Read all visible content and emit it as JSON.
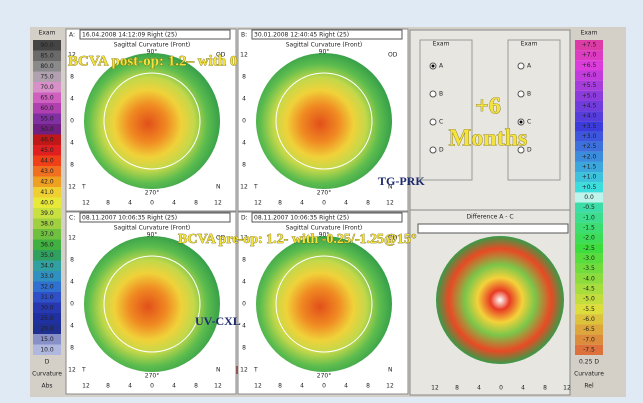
{
  "left_scale": {
    "header": "Exam",
    "labels": [
      "90.0",
      "85.0",
      "80.0",
      "75.0",
      "70.0",
      "65.0",
      "60.0",
      "55.0",
      "50.0",
      "46.0",
      "45.0",
      "44.0",
      "43.0",
      "42.0",
      "41.0",
      "40.0",
      "39.0",
      "38.0",
      "37.0",
      "36.0",
      "35.0",
      "34.0",
      "33.0",
      "32.0",
      "31.0",
      "30.0",
      "25.0",
      "20.0",
      "15.0",
      "10.0"
    ],
    "footer": [
      "D",
      "Curvature",
      "Abs"
    ]
  },
  "right_scale": {
    "header": "Exam",
    "labels": [
      "+7.5",
      "+7.0",
      "+6.5",
      "+6.0",
      "+5.5",
      "+5.0",
      "+4.5",
      "+4.0",
      "+3.5",
      "+3.0",
      "+2.5",
      "+2.0",
      "+1.5",
      "+1.0",
      "+0.5",
      "0.0",
      "-0.5",
      "-1.0",
      "-1.5",
      "-2.0",
      "-2.5",
      "-3.0",
      "-3.5",
      "-4.0",
      "-4.5",
      "-5.0",
      "-5.5",
      "-6.0",
      "-6.5",
      "-7.0",
      "-7.5"
    ],
    "footer": [
      "0.25 D",
      "Curvature",
      "Rel"
    ]
  },
  "panels": [
    {
      "letter": "A:",
      "date": "16.04.2008 14:12:09 Right (25)",
      "map_title": "Sagittal Curvature (Front)"
    },
    {
      "letter": "B:",
      "date": "30.01.2008 12:40:45 Right (25)",
      "map_title": "Sagittal Curvature (Front)"
    },
    {
      "letter": "C:",
      "date": "08.11.2007 10:06:35 Right (25)",
      "map_title": "Sagittal Curvature (Front)"
    },
    {
      "letter": "D:",
      "date": "08.11.2007 10:06:35 Right (25)",
      "map_title": "Sagittal Curvature (Front)"
    }
  ],
  "map_axes": {
    "top": "90°",
    "bottom": "270°",
    "eye": "OD",
    "left": "T",
    "right": "N",
    "ticks": [
      "12",
      "8",
      "4",
      "0",
      "4",
      "8",
      "12"
    ]
  },
  "exam_panel": {
    "columns": [
      {
        "title": "Exam",
        "options": [
          "A",
          "B",
          "C",
          "D"
        ],
        "selected": 0
      },
      {
        "title": "Exam",
        "options": [
          "A",
          "B",
          "C",
          "D"
        ],
        "selected": 2
      }
    ]
  },
  "difference": {
    "title": "Difference A - C"
  },
  "annotations": {
    "post_op": "BCVA post-op: 1.2– with 0",
    "pre_op": "BCVA pre-op: 1.2- with -0.25/-1.25@15°",
    "tg_prk": "TG-PRK",
    "uv_cxl": "UV-CXL",
    "plus": "+6",
    "months": "Months"
  }
}
